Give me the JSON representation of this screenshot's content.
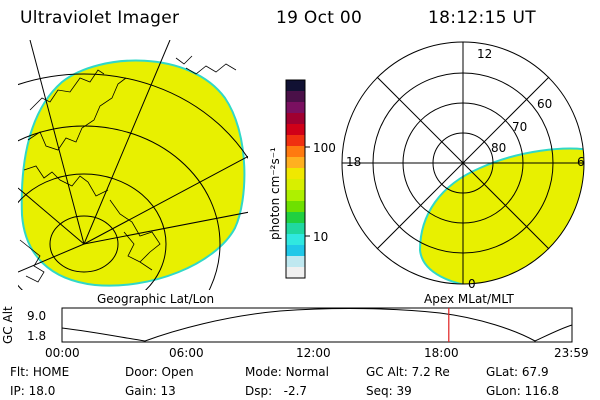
{
  "header": {
    "instrument": "Ultraviolet Imager",
    "date": "19 Oct 00",
    "time": "18:12:15 UT"
  },
  "geo_map": {
    "caption": "Geographic Lat/Lon"
  },
  "color_scale": {
    "unit_label": "photon cm⁻²s⁻¹",
    "ticks": [
      "100",
      "10"
    ],
    "colors": [
      "#111133",
      "#4a1048",
      "#7a1060",
      "#a00030",
      "#d00018",
      "#f03010",
      "#ff7a10",
      "#ffb020",
      "#f0e800",
      "#d8ef00",
      "#aef000",
      "#6ee000",
      "#20d040",
      "#20d8a0",
      "#30e8e0",
      "#20c8e8",
      "#bfe8f0",
      "#f0f0f0"
    ]
  },
  "polar_plot": {
    "caption": "Apex MLat/MLT",
    "mlt_labels": {
      "top": "12",
      "left": "18",
      "right": "6",
      "bottom": "0"
    },
    "lat_labels": [
      "60",
      "70",
      "80"
    ]
  },
  "orbit": {
    "axis_label": "GC Alt",
    "y_max": "9.0",
    "y_min": "1.8",
    "time_ticks": [
      "00:00",
      "06:00",
      "12:00",
      "18:00",
      "23:59"
    ],
    "current_time_hours": 18.2
  },
  "status": {
    "flt_label": "Flt:",
    "flt_value": "HOME",
    "ip_label": "IP:",
    "ip_value": "18.0",
    "door_label": "Door:",
    "door_value": "Open",
    "gain_label": "Gain:",
    "gain_value": "13",
    "mode_label": "Mode:",
    "mode_value": "Normal",
    "dsp_label": "Dsp:",
    "dsp_value": "-2.7",
    "gcalt_label": "GC Alt:",
    "gcalt_value": "7.2 Re",
    "seq_label": "Seq:",
    "seq_value": "39",
    "glat_label": "GLat:",
    "glat_value": "67.9",
    "glon_label": "GLon:",
    "glon_value": "116.8"
  },
  "colors": {
    "aurora_fill": "#e8f000",
    "aurora_edge": "#30d8c8",
    "time_marker": "#e02020"
  }
}
